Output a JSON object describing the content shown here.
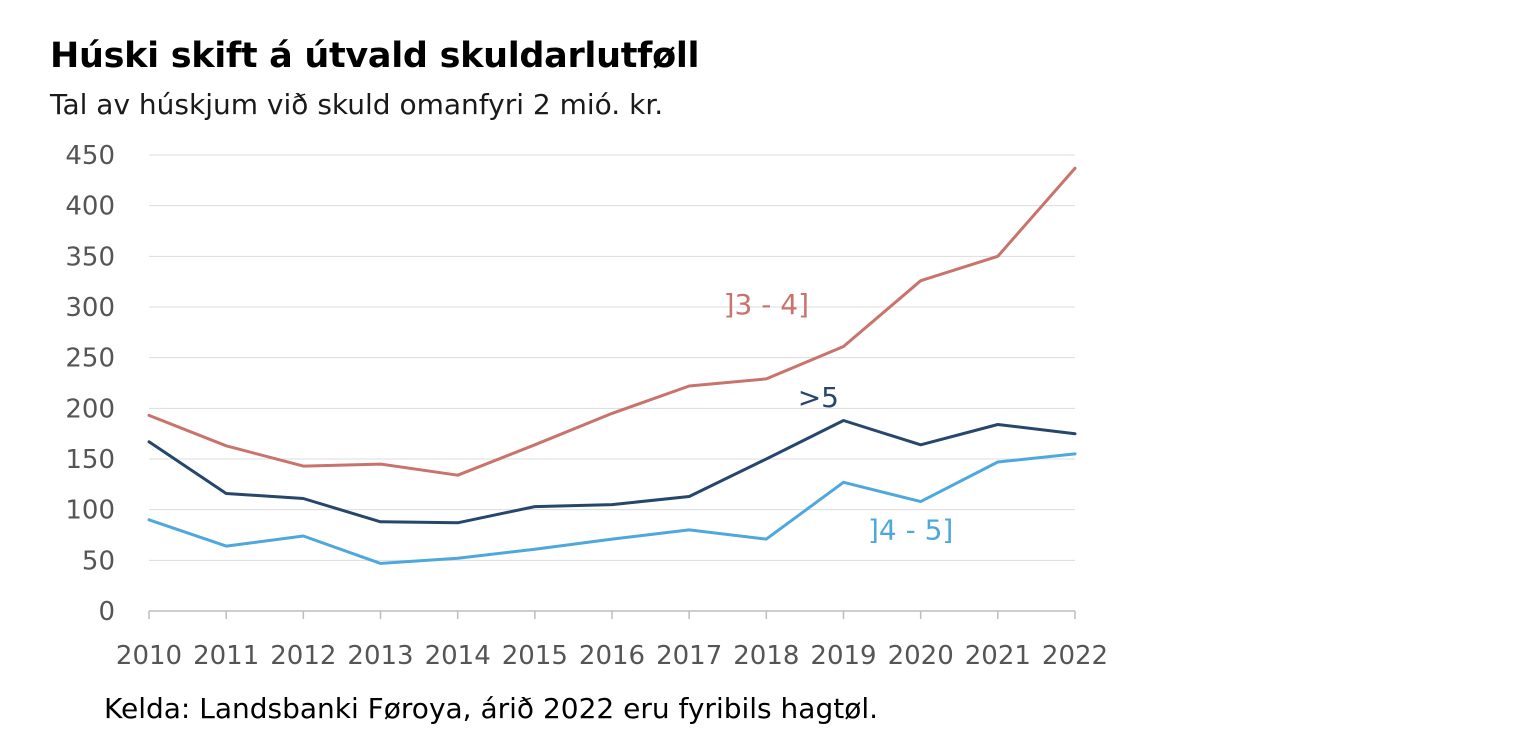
{
  "chart_data": {
    "type": "line",
    "title": "Húski skift á útvald skuldarlutføll",
    "subtitle": "Tal av húskjum við skuld omanfyri 2 mió. kr.",
    "source": "Kelda: Landsbanki Føroya, árið 2022 eru fyribils hagtøl.",
    "x": [
      2010,
      2011,
      2012,
      2013,
      2014,
      2015,
      2016,
      2017,
      2018,
      2019,
      2020,
      2021,
      2022
    ],
    "ylim": [
      0,
      450
    ],
    "yticks": [
      0,
      50,
      100,
      150,
      200,
      250,
      300,
      350,
      400,
      450
    ],
    "grid": true,
    "series": [
      {
        "name": "]3 - 4]",
        "color": "#c8736c",
        "values": [
          193,
          163,
          143,
          145,
          134,
          164,
          195,
          222,
          229,
          261,
          326,
          350,
          437
        ]
      },
      {
        "name": ">5",
        "color": "#26476b",
        "values": [
          167,
          116,
          111,
          88,
          87,
          103,
          105,
          113,
          150,
          188,
          164,
          184,
          175
        ]
      },
      {
        "name": "]4 - 5]",
        "color": "#4ea8dc",
        "values": [
          90,
          64,
          74,
          47,
          52,
          61,
          71,
          80,
          71,
          127,
          108,
          147,
          155
        ]
      }
    ]
  }
}
